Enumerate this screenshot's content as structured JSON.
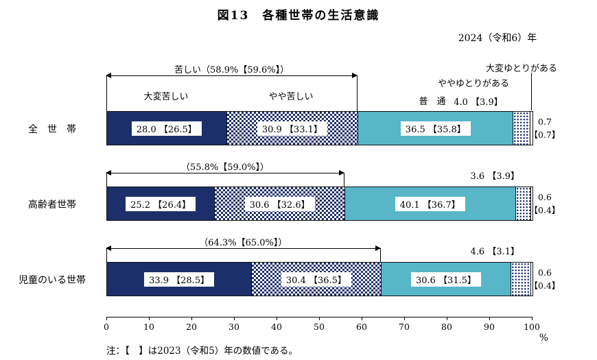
{
  "title": "図13　各種世帯の生活意識",
  "year_label": "2024（令和6）年",
  "note": "注：【　】は2023（令和5）年の数値である。",
  "chart_data": {
    "type": "bar",
    "orientation": "horizontal",
    "stacked": true,
    "unit": "%",
    "x_axis": {
      "min": 0,
      "max": 100,
      "tick_step": 10,
      "ticks": [
        0,
        10,
        20,
        30,
        40,
        50,
        60,
        70,
        80,
        90,
        100
      ],
      "unit": "%"
    },
    "series": [
      "大変苦しい",
      "やや苦しい",
      "普　通",
      "ややゆとりがある",
      "大変ゆとりがある"
    ],
    "categories": [
      "全　世　帯",
      "高齢者世帯",
      "児童のいる世帯"
    ],
    "rows": [
      {
        "category": "全　世　帯",
        "values": [
          28.0,
          30.9,
          36.5,
          4.0,
          0.7
        ],
        "prev_values": [
          26.5,
          33.1,
          35.8,
          3.9,
          0.7
        ],
        "in_bar_labels": [
          "28.0 【26.5】",
          "30.9 【33.1】",
          "36.5 【35.8】"
        ],
        "yoyu_label": "4.0 【3.9】",
        "right_label_lines": [
          "0.7",
          "【0.7】"
        ],
        "kurushii_total": 58.9,
        "kurushii_prev": 59.6,
        "arrow_label": "苦しい（58.9%【59.6%】）"
      },
      {
        "category": "高齢者世帯",
        "values": [
          25.2,
          30.6,
          40.1,
          3.6,
          0.6
        ],
        "prev_values": [
          26.4,
          32.6,
          36.7,
          3.9,
          0.4
        ],
        "in_bar_labels": [
          "25.2 【26.4】",
          "30.6 【32.6】",
          "40.1 【36.7】"
        ],
        "yoyu_label": "3.6 【3.9】",
        "right_label_lines": [
          "0.6",
          "【0.4】"
        ],
        "kurushii_total": 55.8,
        "kurushii_prev": 59.0,
        "arrow_label": "（55.8%【59.0%】）"
      },
      {
        "category": "児童のいる世帯",
        "values": [
          33.9,
          30.4,
          30.6,
          4.6,
          0.6
        ],
        "prev_values": [
          28.5,
          36.5,
          31.5,
          3.1,
          0.4
        ],
        "in_bar_labels": [
          "33.9 【28.5】",
          "30.4 【36.5】",
          "30.6 【31.5】"
        ],
        "yoyu_label": "4.6 【3.1】",
        "right_label_lines": [
          "0.6",
          "【0.4】"
        ],
        "kurushii_total": 64.3,
        "kurushii_prev": 65.0,
        "arrow_label": "（64.3%【65.0%】）"
      }
    ]
  }
}
